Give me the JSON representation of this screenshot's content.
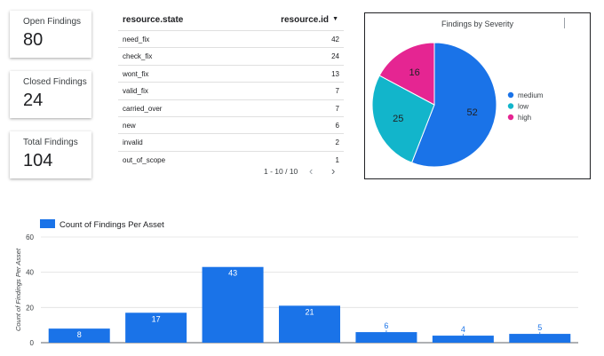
{
  "kpis": {
    "open": {
      "label": "Open Findings",
      "value": "80"
    },
    "closed": {
      "label": "Closed Findings",
      "value": "24"
    },
    "total": {
      "label": "Total Findings",
      "value": "104"
    }
  },
  "table": {
    "headers": {
      "state": "resource.state",
      "id": "resource.id"
    },
    "rows": [
      {
        "state": "need_fix",
        "count": "42"
      },
      {
        "state": "check_fix",
        "count": "24"
      },
      {
        "state": "wont_fix",
        "count": "13"
      },
      {
        "state": "valid_fix",
        "count": "7"
      },
      {
        "state": "carried_over",
        "count": "7"
      },
      {
        "state": "new",
        "count": "6"
      },
      {
        "state": "invalid",
        "count": "2"
      },
      {
        "state": "out_of_scope",
        "count": "1"
      }
    ],
    "pager": {
      "info": "1 - 10 / 10",
      "prev": "‹",
      "next": "›"
    }
  },
  "pie": {
    "title": "Findings by Severity",
    "slices": [
      {
        "name": "medium",
        "value": 52,
        "color": "#1a73e8"
      },
      {
        "name": "low",
        "value": 25,
        "color": "#12b5cb"
      },
      {
        "name": "high",
        "value": 16,
        "color": "#e52592"
      }
    ]
  },
  "chart_data": {
    "type": "bar",
    "legend": "Count of Findings Per Asset",
    "ylabel": "Count of Findings Per Asset",
    "xlabel": "",
    "ylim": [
      0,
      60
    ],
    "yticks": [
      0,
      20,
      40,
      60
    ],
    "values": [
      8,
      17,
      43,
      21,
      6,
      4,
      5
    ],
    "color": "#1a73e8",
    "grid": true
  }
}
